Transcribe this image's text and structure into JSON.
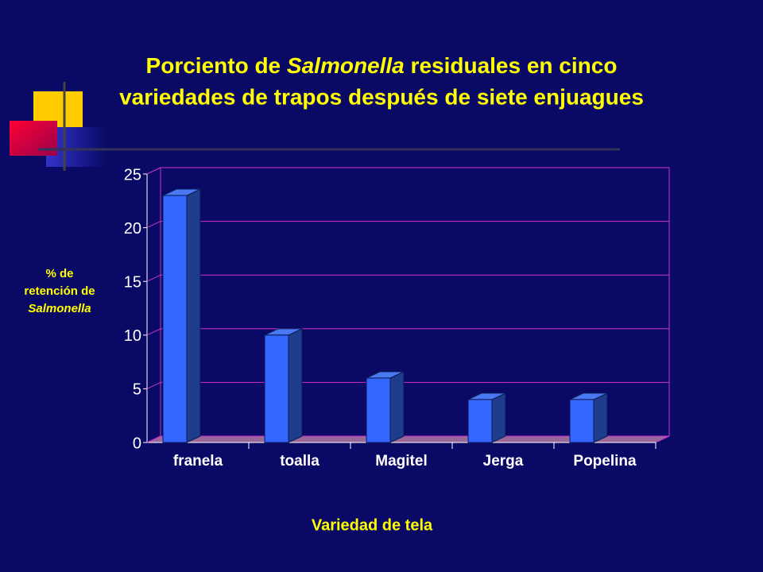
{
  "chart_data": {
    "type": "bar",
    "title": [
      "Porciento de ",
      "Salmonella",
      " residuales en cinco",
      "variedades de trapos después de siete enjuagues"
    ],
    "y_label": [
      "% de",
      "retención de",
      "Salmonella"
    ],
    "x_label": "Variedad de tela",
    "categories": [
      "franela",
      "toalla",
      "Magitel",
      "Jerga",
      "Popelina"
    ],
    "values": [
      23,
      10,
      6,
      4,
      4
    ],
    "color": "#3366ff",
    "ylim": [
      0,
      25
    ],
    "yticks": [
      0,
      5,
      10,
      15,
      20,
      25
    ],
    "grid": true
  }
}
